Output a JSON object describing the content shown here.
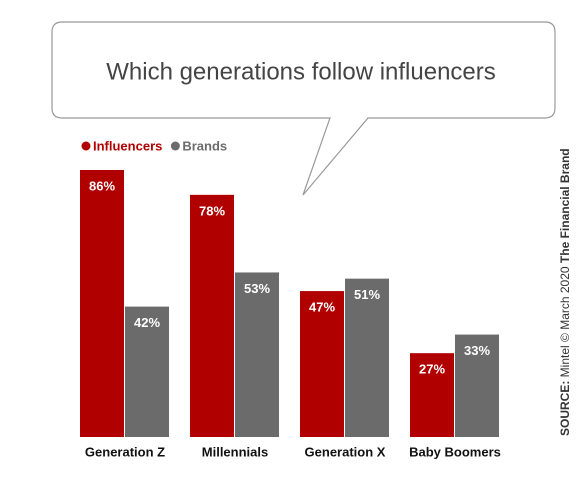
{
  "chart_data": {
    "type": "bar",
    "title": "Which generations follow influencers",
    "categories": [
      "Generation Z",
      "Millennials",
      "Generation X",
      "Baby Boomers"
    ],
    "series": [
      {
        "name": "Influencers",
        "color": "#b00000",
        "values": [
          86,
          78,
          47,
          27
        ],
        "value_labels": [
          "86%",
          "78%",
          "47%",
          "27%"
        ]
      },
      {
        "name": "Brands",
        "color": "#6b6b6b",
        "values": [
          42,
          53,
          51,
          33
        ],
        "value_labels": [
          "42%",
          "53%",
          "51%",
          "33%"
        ]
      }
    ],
    "source": {
      "label": "SOURCE:",
      "text": "Mintel © March 2020",
      "brand": "The Financial Brand"
    }
  }
}
